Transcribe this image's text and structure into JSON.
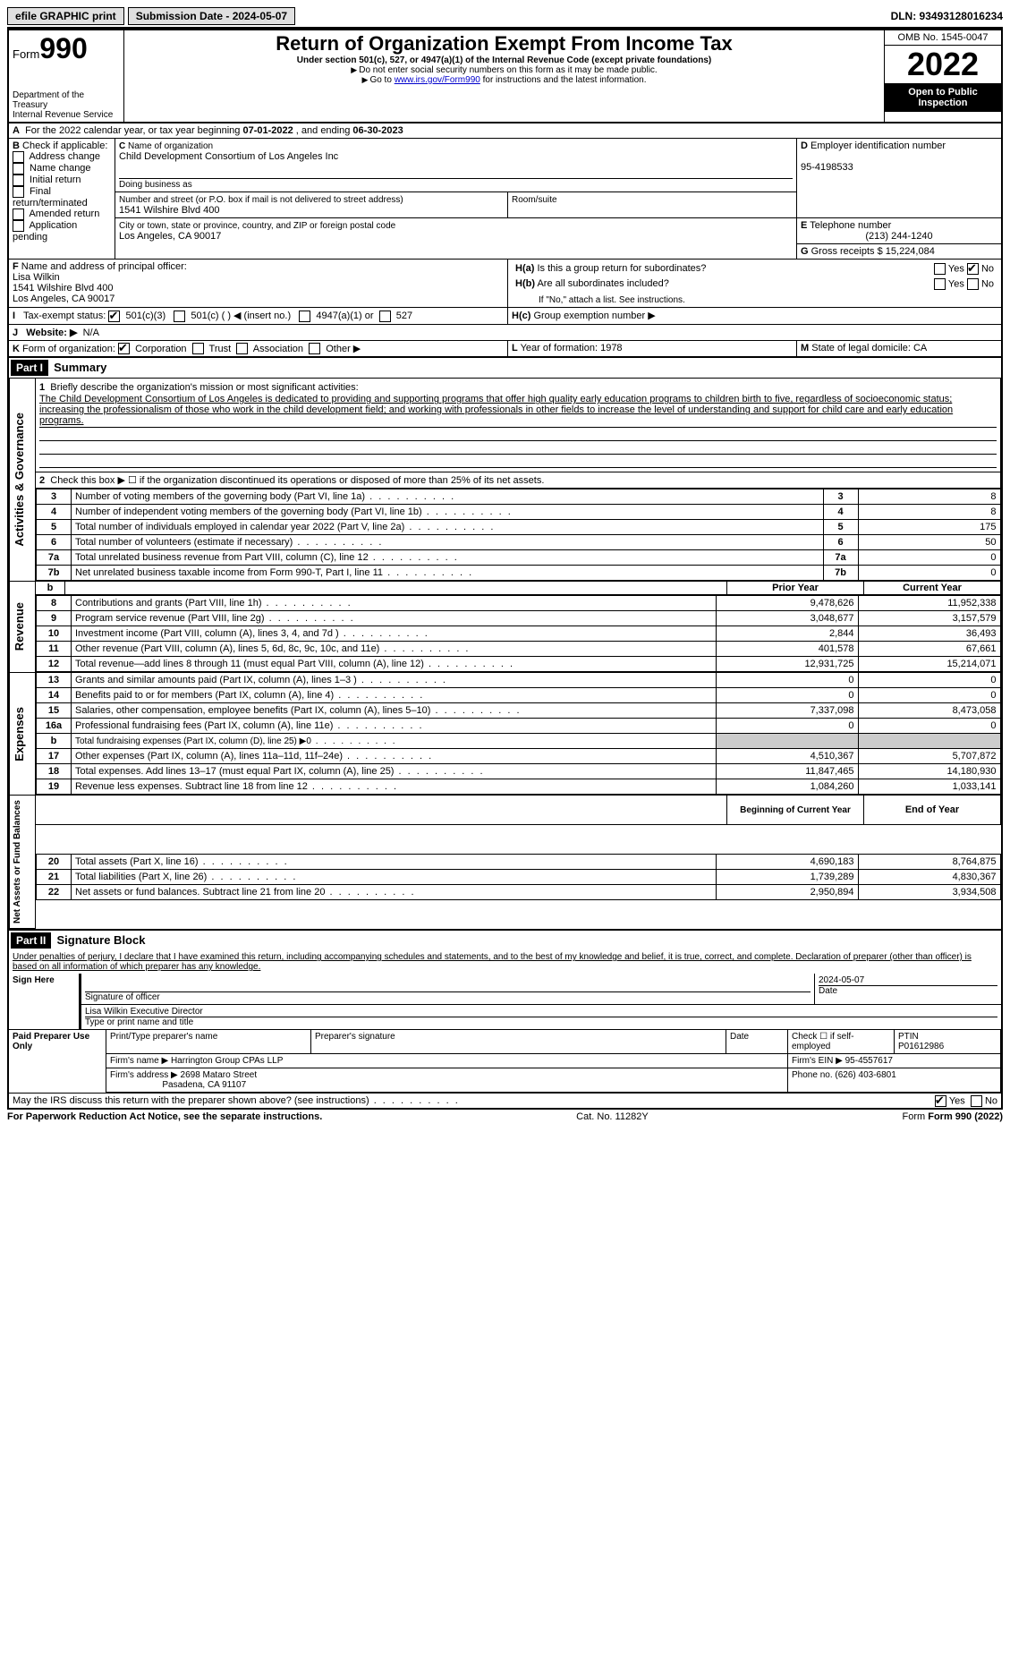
{
  "topbar": {
    "efile": "efile GRAPHIC print",
    "subdate_label": "Submission Date - 2024-05-07",
    "dln_label": "DLN: 93493128016234"
  },
  "header": {
    "form_prefix": "Form",
    "form_no": "990",
    "title": "Return of Organization Exempt From Income Tax",
    "subtitle": "Under section 501(c), 527, or 4947(a)(1) of the Internal Revenue Code (except private foundations)",
    "note1": "Do not enter social security numbers on this form as it may be made public.",
    "note2_pre": "Go to ",
    "note2_link": "www.irs.gov/Form990",
    "note2_post": " for instructions and the latest information.",
    "dept": "Department of the Treasury\nInternal Revenue Service",
    "omb": "OMB No. 1545-0047",
    "year": "2022",
    "open": "Open to Public Inspection"
  },
  "periodA": {
    "text_pre": "For the 2022 calendar year, or tax year beginning ",
    "begin": "07-01-2022",
    "mid": " , and ending ",
    "end": "06-30-2023"
  },
  "boxB": {
    "label": "Check if applicable:",
    "opts": [
      "Address change",
      "Name change",
      "Initial return",
      "Final return/terminated",
      "Amended return",
      "Application pending"
    ]
  },
  "boxC": {
    "name_label": "Name of organization",
    "name": "Child Development Consortium of Los Angeles Inc",
    "dba_label": "Doing business as",
    "street_label": "Number and street (or P.O. box if mail is not delivered to street address)",
    "street": "1541 Wilshire Blvd 400",
    "room_label": "Room/suite",
    "city_label": "City or town, state or province, country, and ZIP or foreign postal code",
    "city": "Los Angeles, CA  90017"
  },
  "boxD": {
    "label": "Employer identification number",
    "val": "95-4198533"
  },
  "boxE": {
    "label": "Telephone number",
    "val": "(213) 244-1240"
  },
  "boxG": {
    "label": "Gross receipts $",
    "val": "15,224,084"
  },
  "boxF": {
    "label": "Name and address of principal officer:",
    "name": "Lisa Wilkin",
    "street": "1541 Wilshire Blvd 400",
    "city": "Los Angeles, CA  90017"
  },
  "boxH": {
    "a": "Is this a group return for subordinates?",
    "b": "Are all subordinates included?",
    "note": "If \"No,\" attach a list. See instructions.",
    "c": "Group exemption number ▶"
  },
  "boxI": {
    "label": "Tax-exempt status:",
    "o1": "501(c)(3)",
    "o2": "501(c) (  ) ◀ (insert no.)",
    "o3": "4947(a)(1) or",
    "o4": "527"
  },
  "boxJ": {
    "label": "Website: ▶",
    "val": "N/A"
  },
  "boxK": {
    "label": "Form of organization:",
    "o1": "Corporation",
    "o2": "Trust",
    "o3": "Association",
    "o4": "Other ▶"
  },
  "boxL": {
    "label": "Year of formation:",
    "val": "1978"
  },
  "boxM": {
    "label": "State of legal domicile:",
    "val": "CA"
  },
  "part1": {
    "bar": "Part I",
    "title": "Summary",
    "side_ag": "Activities & Governance",
    "side_rev": "Revenue",
    "side_exp": "Expenses",
    "side_net": "Net Assets or Fund Balances",
    "line1_label": "Briefly describe the organization's mission or most significant activities:",
    "mission": "The Child Development Consortium of Los Angeles is dedicated to providing and supporting programs that offer high quality early education programs to children birth to five, regardless of socioeconomic status; increasing the professionalism of those who work in the child development field; and working with professionals in other fields to increase the level of understanding and support for child care and early education programs.",
    "line2": "Check this box ▶ ☐ if the organization discontinued its operations or disposed of more than 25% of its net assets.",
    "lines_simple": [
      {
        "n": "3",
        "t": "Number of voting members of the governing body (Part VI, line 1a)",
        "c": "3",
        "v": "8"
      },
      {
        "n": "4",
        "t": "Number of independent voting members of the governing body (Part VI, line 1b)",
        "c": "4",
        "v": "8"
      },
      {
        "n": "5",
        "t": "Total number of individuals employed in calendar year 2022 (Part V, line 2a)",
        "c": "5",
        "v": "175"
      },
      {
        "n": "6",
        "t": "Total number of volunteers (estimate if necessary)",
        "c": "6",
        "v": "50"
      },
      {
        "n": "7a",
        "t": "Total unrelated business revenue from Part VIII, column (C), line 12",
        "c": "7a",
        "v": "0"
      },
      {
        "n": "7b",
        "t": "Net unrelated business taxable income from Form 990-T, Part I, line 11",
        "c": "7b",
        "v": "0"
      }
    ],
    "col_headers": {
      "b": "b",
      "prior": "Prior Year",
      "curr": "Current Year",
      "bcy": "Beginning of Current Year",
      "eoy": "End of Year"
    },
    "rev_rows": [
      {
        "n": "8",
        "t": "Contributions and grants (Part VIII, line 1h)",
        "p": "9,478,626",
        "c": "11,952,338"
      },
      {
        "n": "9",
        "t": "Program service revenue (Part VIII, line 2g)",
        "p": "3,048,677",
        "c": "3,157,579"
      },
      {
        "n": "10",
        "t": "Investment income (Part VIII, column (A), lines 3, 4, and 7d )",
        "p": "2,844",
        "c": "36,493"
      },
      {
        "n": "11",
        "t": "Other revenue (Part VIII, column (A), lines 5, 6d, 8c, 9c, 10c, and 11e)",
        "p": "401,578",
        "c": "67,661"
      },
      {
        "n": "12",
        "t": "Total revenue—add lines 8 through 11 (must equal Part VIII, column (A), line 12)",
        "p": "12,931,725",
        "c": "15,214,071"
      }
    ],
    "exp_rows": [
      {
        "n": "13",
        "t": "Grants and similar amounts paid (Part IX, column (A), lines 1–3 )",
        "p": "0",
        "c": "0"
      },
      {
        "n": "14",
        "t": "Benefits paid to or for members (Part IX, column (A), line 4)",
        "p": "0",
        "c": "0"
      },
      {
        "n": "15",
        "t": "Salaries, other compensation, employee benefits (Part IX, column (A), lines 5–10)",
        "p": "7,337,098",
        "c": "8,473,058"
      },
      {
        "n": "16a",
        "t": "Professional fundraising fees (Part IX, column (A), line 11e)",
        "p": "0",
        "c": "0"
      },
      {
        "n": "b",
        "t": "Total fundraising expenses (Part IX, column (D), line 25) ▶0",
        "p": "",
        "c": "",
        "grey": true,
        "small": true
      },
      {
        "n": "17",
        "t": "Other expenses (Part IX, column (A), lines 11a–11d, 11f–24e)",
        "p": "4,510,367",
        "c": "5,707,872"
      },
      {
        "n": "18",
        "t": "Total expenses. Add lines 13–17 (must equal Part IX, column (A), line 25)",
        "p": "11,847,465",
        "c": "14,180,930"
      },
      {
        "n": "19",
        "t": "Revenue less expenses. Subtract line 18 from line 12",
        "p": "1,084,260",
        "c": "1,033,141"
      }
    ],
    "net_rows": [
      {
        "n": "20",
        "t": "Total assets (Part X, line 16)",
        "p": "4,690,183",
        "c": "8,764,875"
      },
      {
        "n": "21",
        "t": "Total liabilities (Part X, line 26)",
        "p": "1,739,289",
        "c": "4,830,367"
      },
      {
        "n": "22",
        "t": "Net assets or fund balances. Subtract line 21 from line 20",
        "p": "2,950,894",
        "c": "3,934,508"
      }
    ]
  },
  "part2": {
    "bar": "Part II",
    "title": "Signature Block",
    "decl": "Under penalties of perjury, I declare that I have examined this return, including accompanying schedules and statements, and to the best of my knowledge and belief, it is true, correct, and complete. Declaration of preparer (other than officer) is based on all information of which preparer has any knowledge.",
    "sign_here": "Sign Here",
    "sig_label": "Signature of officer",
    "date_label": "Date",
    "date_val": "2024-05-07",
    "name_title": "Lisa Wilkin  Executive Director",
    "name_title_label": "Type or print name and title",
    "paid": "Paid Preparer Use Only",
    "prep_name_label": "Print/Type preparer's name",
    "prep_sig_label": "Preparer's signature",
    "check_self": "Check ☐ if self-employed",
    "ptin_label": "PTIN",
    "ptin": "P01612986",
    "firm_name_label": "Firm's name    ▶",
    "firm_name": "Harrington Group CPAs LLP",
    "firm_ein_label": "Firm's EIN ▶",
    "firm_ein": "95-4557617",
    "firm_addr_label": "Firm's address ▶",
    "firm_addr1": "2698 Mataro Street",
    "firm_addr2": "Pasadena, CA  91107",
    "phone_label": "Phone no.",
    "phone": "(626) 403-6801",
    "discuss": "May the IRS discuss this return with the preparer shown above? (see instructions)"
  },
  "footer": {
    "pra": "For Paperwork Reduction Act Notice, see the separate instructions.",
    "cat": "Cat. No. 11282Y",
    "form": "Form 990 (2022)"
  },
  "labels": {
    "yes": "Yes",
    "no": "No",
    "A": "A",
    "B": "B",
    "C": "C",
    "D": "D",
    "E": "E",
    "F": "F",
    "G": "G",
    "Ha": "H(a)",
    "Hb": "H(b)",
    "Hc": "H(c)",
    "I": "I",
    "J": "J",
    "K": "K",
    "L": "L",
    "M": "M",
    "1": "1",
    "2": "2"
  }
}
